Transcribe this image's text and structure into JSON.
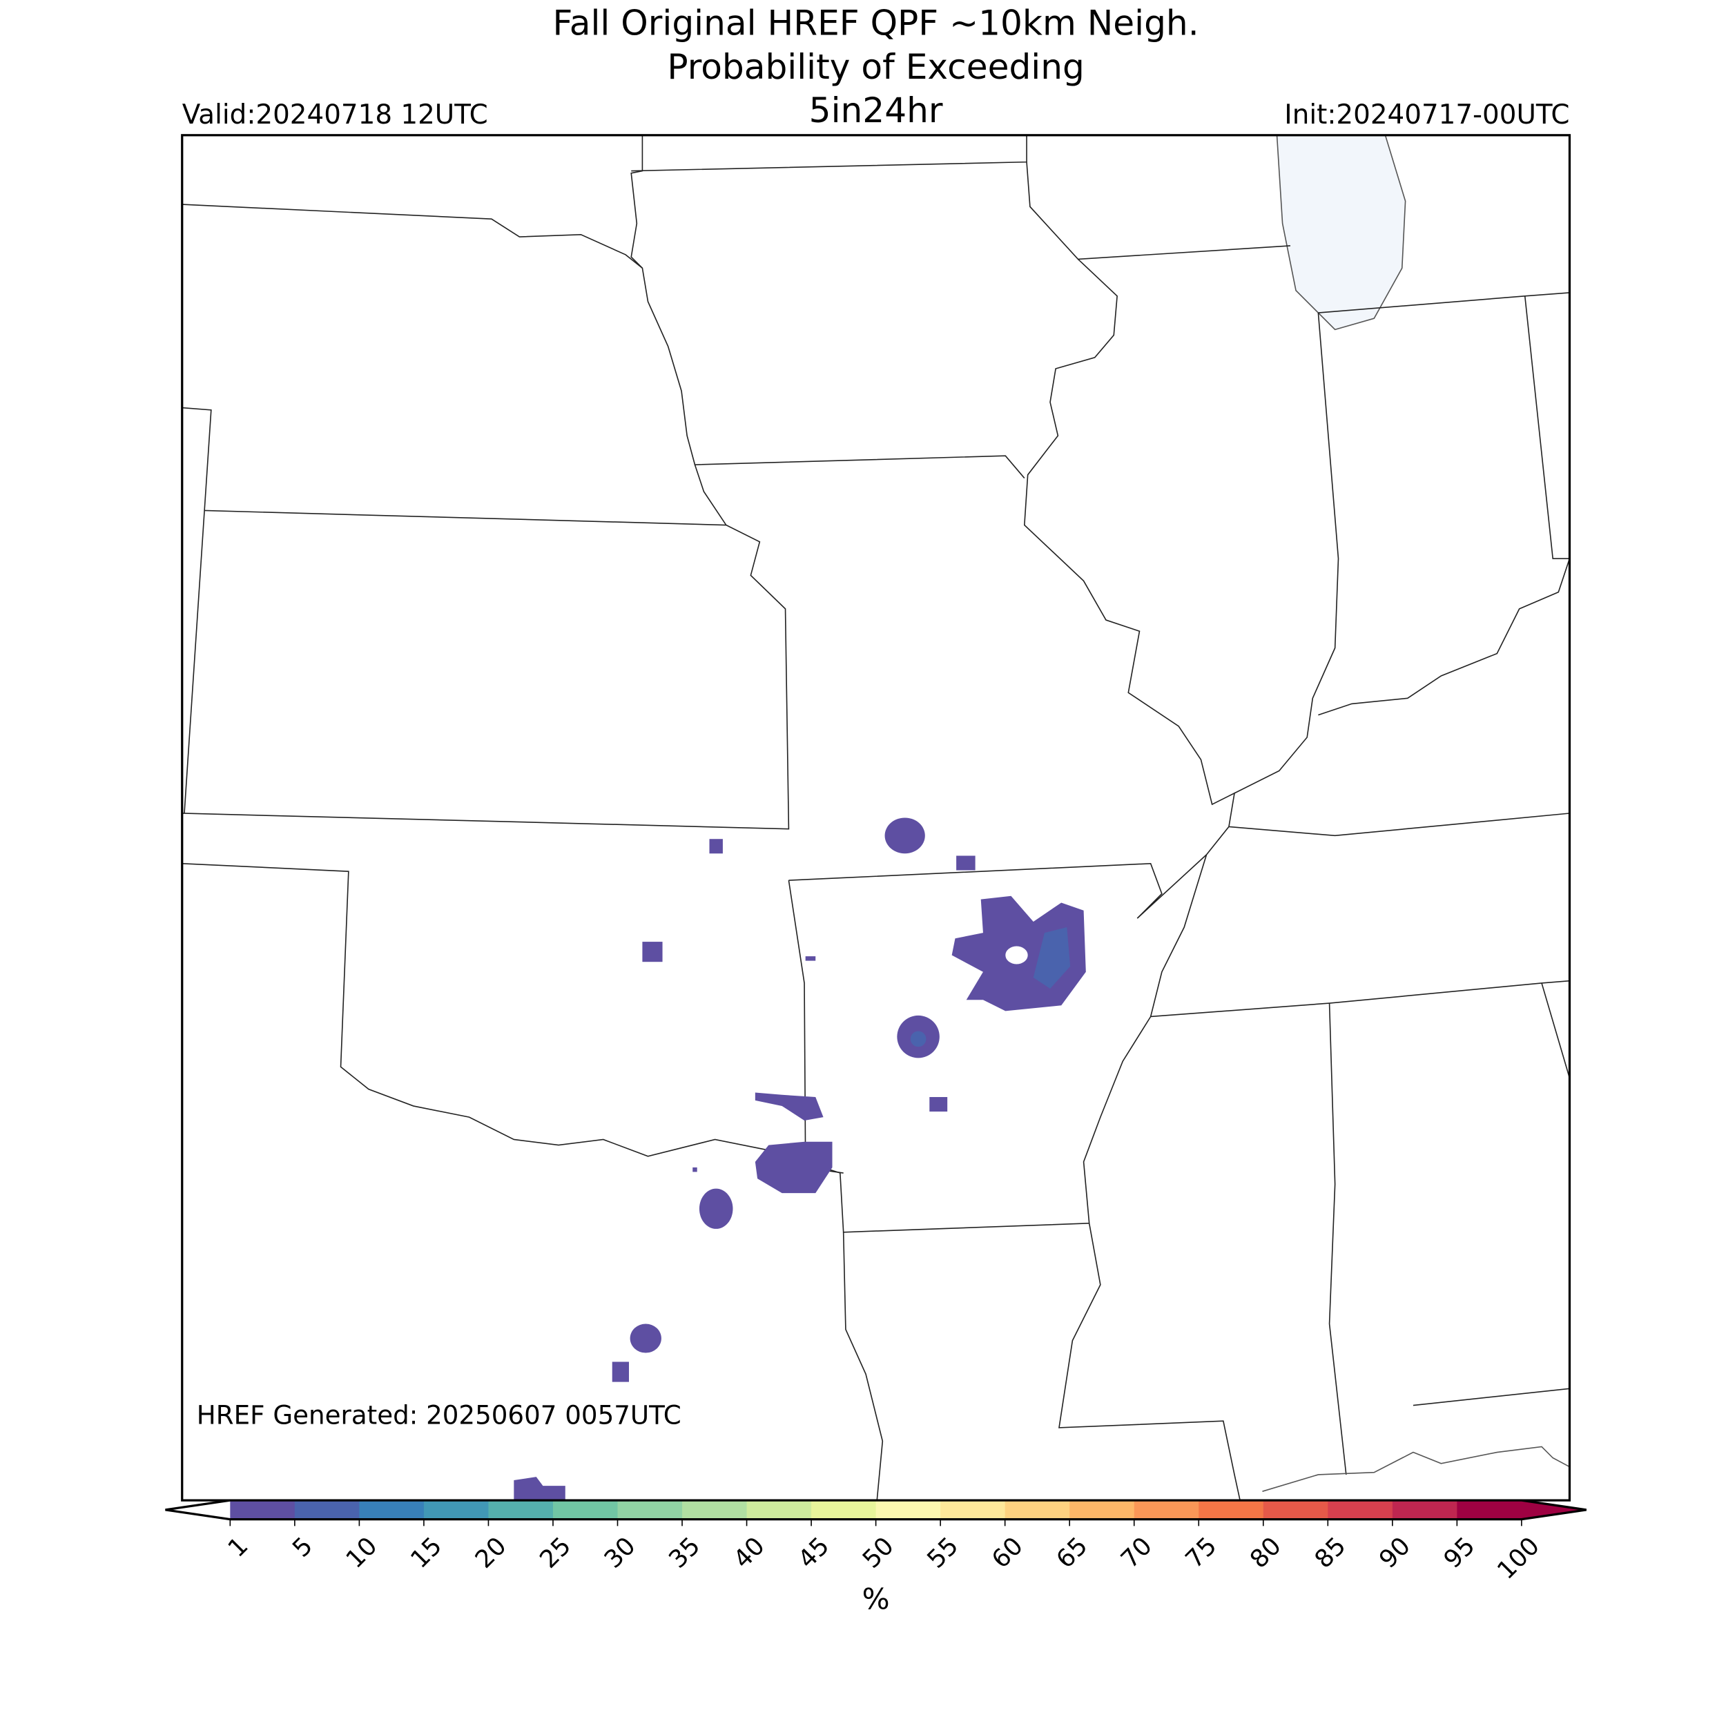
{
  "title": [
    "Fall Original HREF QPF ~10km Neigh.",
    "Probability of Exceeding",
    "5in24hr"
  ],
  "valid": "Valid:20240718 12UTC",
  "init": "Init:20240717-00UTC",
  "generated": "HREF Generated: 20250607 0057UTC",
  "colorbar": {
    "ticks": [
      1,
      5,
      10,
      15,
      20,
      25,
      30,
      35,
      40,
      45,
      50,
      55,
      60,
      65,
      70,
      75,
      80,
      85,
      90,
      95,
      100
    ],
    "colors": [
      "#5e4fa2",
      "#4a63ad",
      "#3880b9",
      "#4198b6",
      "#55b0ad",
      "#71c6a4",
      "#91d3a4",
      "#b1e0a2",
      "#cfec9d",
      "#e8f59b",
      "#fbf8b0",
      "#fee89a",
      "#fed280",
      "#fdb768",
      "#fa9757",
      "#f47646",
      "#e65949",
      "#d7404e",
      "#bf2650",
      "#9e0142"
    ],
    "under_color": "#ffffff",
    "over_color": "#9e0142",
    "label": "%"
  }
}
